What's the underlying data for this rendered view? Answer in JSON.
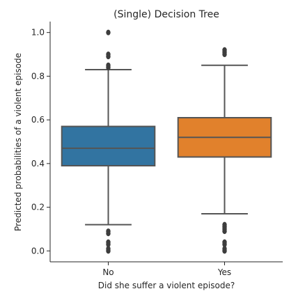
{
  "chart_data": {
    "type": "box",
    "title": "(Single) Decision Tree",
    "xlabel": "Did she suffer a violent episode?",
    "ylabel": "Predicted probabilities of a violent episode",
    "categories": [
      "No",
      "Yes"
    ],
    "ylim": [
      -0.05,
      1.05
    ],
    "yticks": [
      0.0,
      0.2,
      0.4,
      0.6,
      0.8,
      1.0
    ],
    "ytick_labels": [
      "0.0",
      "0.2",
      "0.4",
      "0.6",
      "0.8",
      "1.0"
    ],
    "grid": false,
    "series": [
      {
        "category": "No",
        "color": "#3274a1",
        "whisker_low": 0.12,
        "q1": 0.39,
        "median": 0.47,
        "q3": 0.57,
        "whisker_high": 0.83,
        "outliers": [
          0.0,
          0.01,
          0.03,
          0.04,
          0.08,
          0.09,
          0.84,
          0.85,
          0.89,
          0.9,
          1.0
        ]
      },
      {
        "category": "Yes",
        "color": "#e1812c",
        "whisker_low": 0.17,
        "q1": 0.43,
        "median": 0.52,
        "q3": 0.61,
        "whisker_high": 0.85,
        "outliers": [
          0.0,
          0.01,
          0.03,
          0.04,
          0.09,
          0.1,
          0.11,
          0.12,
          0.9,
          0.91,
          0.92
        ]
      }
    ]
  }
}
